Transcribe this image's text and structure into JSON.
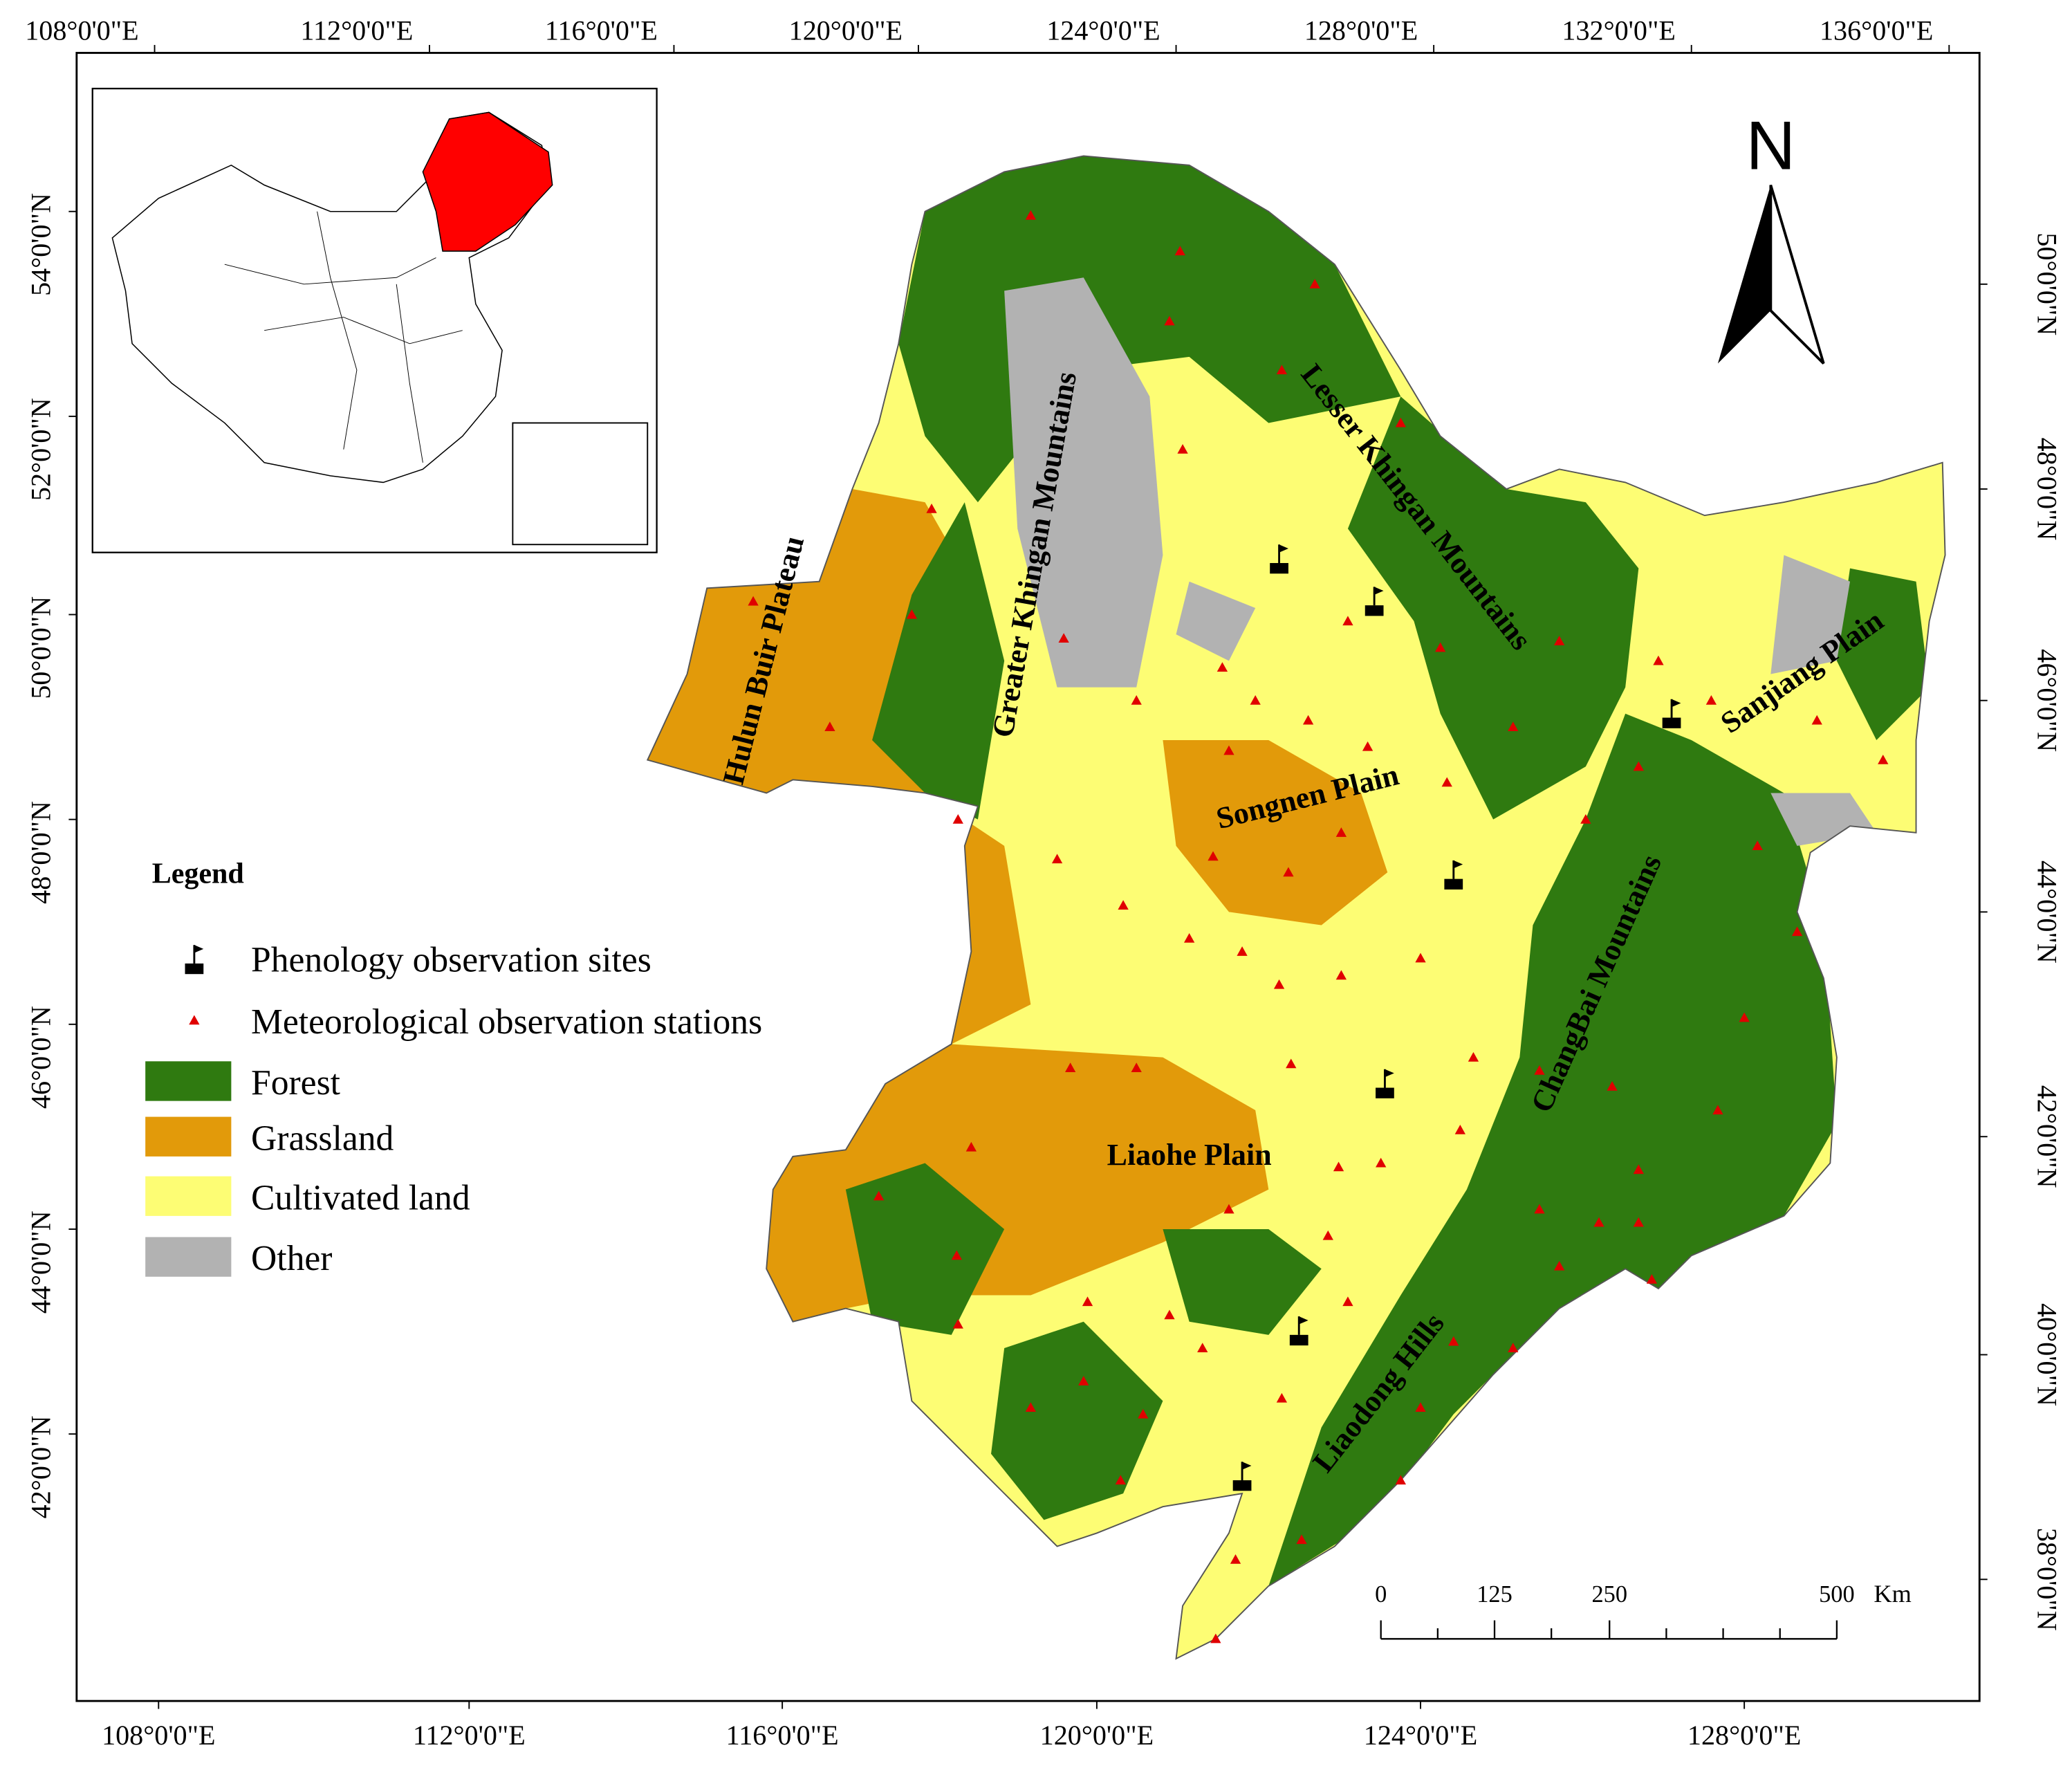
{
  "top_axis": {
    "labels": [
      "108°0'0\"E",
      "112°0'0\"E",
      "116°0'0\"E",
      "120°0'0\"E",
      "124°0'0\"E",
      "128°0'0\"E",
      "132°0'0\"E",
      "136°0'0\"E"
    ]
  },
  "bottom_axis": {
    "labels": [
      "108°0'0\"E",
      "112°0'0\"E",
      "116°0'0\"E",
      "120°0'0\"E",
      "124°0'0\"E",
      "128°0'0\"E"
    ]
  },
  "left_axis": {
    "labels": [
      "54°0'0\"N",
      "52°0'0\"N",
      "50°0'0\"N",
      "48°0'0\"N",
      "46°0'0\"N",
      "44°0'0\"N",
      "42°0'0\"N"
    ]
  },
  "right_axis": {
    "labels": [
      "50°0'0\"N",
      "48°0'0\"N",
      "46°0'0\"N",
      "44°0'0\"N",
      "42°0'0\"N",
      "40°0'0\"N",
      "38°0'0\"N"
    ]
  },
  "north_arrow": {
    "label": "N"
  },
  "region_labels": [
    "Hulun Buir Plateau",
    "Greater Khingan Mountains",
    "Lesser Khingan Mountains",
    "Sanjiang Plain",
    "Songnen Plain",
    "Liaohe Plain",
    "ChangBai Mountains",
    "Liaodong Hills"
  ],
  "legend": {
    "title": "Legend",
    "items": [
      {
        "label": "Phenology observation sites"
      },
      {
        "label": "Meteorological observation stations"
      },
      {
        "label": "Forest",
        "color": "#2f7a10"
      },
      {
        "label": "Grassland",
        "color": "#e29a0a"
      },
      {
        "label": "Cultivated land",
        "color": "#fdfd74"
      },
      {
        "label": "Other",
        "color": "#b2b2b2"
      }
    ]
  },
  "scale_bar": {
    "labels": [
      "0",
      "125",
      "250",
      "500"
    ],
    "unit": "Km"
  }
}
